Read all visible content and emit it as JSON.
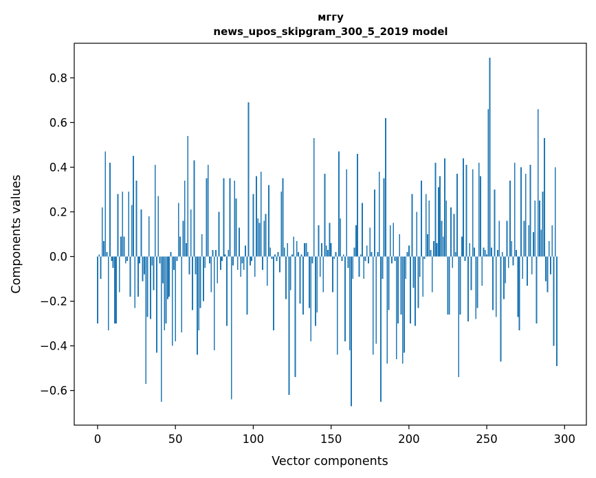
{
  "chart_data": {
    "type": "bar",
    "title_line1": "мггу",
    "title_line2": "news_upos_skipgram_300_5_2019 model",
    "xlabel": "Vector components",
    "ylabel": "Components values",
    "xlim": [
      -15,
      314
    ],
    "ylim": [
      -0.755,
      0.955
    ],
    "xticks": [
      0,
      50,
      100,
      150,
      200,
      250,
      300
    ],
    "xtick_labels": [
      "0",
      "50",
      "100",
      "150",
      "200",
      "250",
      "300"
    ],
    "yticks": [
      -0.6,
      -0.4,
      -0.2,
      0.0,
      0.2,
      0.4,
      0.6,
      0.8
    ],
    "ytick_labels": [
      "−0.6",
      "−0.4",
      "−0.2",
      "0.0",
      "0.2",
      "0.4",
      "0.6",
      "0.8"
    ],
    "bar_color": "#1f77b4",
    "values": [
      -0.3,
      0.01,
      -0.1,
      0.22,
      0.07,
      0.47,
      0.02,
      -0.33,
      0.42,
      -0.02,
      -0.05,
      -0.3,
      -0.3,
      0.28,
      -0.16,
      0.09,
      0.29,
      0.09,
      -0.03,
      -0.02,
      0.29,
      -0.18,
      0.23,
      0.45,
      -0.23,
      0.34,
      -0.18,
      -0.03,
      0.21,
      -0.11,
      -0.08,
      -0.57,
      -0.27,
      0.18,
      -0.28,
      -0.04,
      -0.15,
      0.41,
      -0.43,
      0.27,
      -0.03,
      -0.65,
      -0.12,
      -0.33,
      -0.3,
      -0.19,
      -0.18,
      0.02,
      -0.4,
      -0.06,
      -0.38,
      -0.02,
      0.24,
      0.09,
      -0.34,
      0.16,
      0.34,
      0.06,
      0.54,
      -0.08,
      0.21,
      -0.24,
      0.43,
      -0.08,
      -0.44,
      -0.33,
      -0.23,
      0.1,
      -0.2,
      -0.05,
      0.35,
      0.41,
      -0.03,
      -0.16,
      0.03,
      -0.42,
      0.03,
      -0.12,
      0.2,
      -0.06,
      -0.02,
      0.35,
      0.01,
      -0.31,
      0.03,
      0.35,
      -0.64,
      -0.04,
      0.34,
      0.26,
      -0.06,
      0.13,
      -0.09,
      -0.03,
      -0.06,
      0.05,
      -0.26,
      0.69,
      -0.04,
      -0.02,
      0.28,
      -0.09,
      0.36,
      0.17,
      0.15,
      0.38,
      -0.06,
      0.16,
      0.19,
      -0.13,
      0.32,
      0.04,
      -0.01,
      -0.33,
      0.01,
      -0.02,
      0.02,
      -0.07,
      0.29,
      0.35,
      0.04,
      -0.19,
      0.06,
      -0.62,
      -0.15,
      0.01,
      0.09,
      -0.54,
      0.07,
      0.02,
      -0.21,
      0.01,
      -0.26,
      0.06,
      0.06,
      0.02,
      -0.23,
      -0.38,
      -0.03,
      0.53,
      -0.31,
      -0.25,
      0.14,
      -0.09,
      0.06,
      -0.16,
      0.37,
      0.05,
      0.03,
      0.15,
      0.06,
      -0.16,
      -0.01,
      0.02,
      -0.44,
      0.47,
      0.17,
      -0.02,
      0.01,
      -0.38,
      0.39,
      -0.05,
      -0.42,
      -0.67,
      -0.1,
      0.04,
      0.14,
      0.46,
      -0.09,
      0.01,
      0.24,
      -0.1,
      -0.02,
      0.05,
      -0.03,
      0.13,
      0.02,
      -0.44,
      0.3,
      -0.39,
      0.02,
      0.38,
      -0.65,
      -0.1,
      0.35,
      0.62,
      -0.48,
      -0.24,
      0.14,
      -0.03,
      0.15,
      -0.02,
      -0.46,
      -0.3,
      0.1,
      -0.26,
      -0.48,
      -0.43,
      -0.1,
      0.02,
      0.05,
      -0.3,
      0.28,
      -0.14,
      -0.31,
      0.2,
      -0.23,
      -0.09,
      0.34,
      -0.18,
      -0.01,
      0.28,
      0.1,
      0.25,
      0.03,
      -0.16,
      0.07,
      0.42,
      0.06,
      0.31,
      0.36,
      0.16,
      0.09,
      0.44,
      0.25,
      -0.26,
      -0.26,
      0.22,
      -0.05,
      0.19,
      0.02,
      0.37,
      -0.54,
      -0.26,
      0.09,
      0.44,
      -0.02,
      0.41,
      -0.29,
      0.06,
      -0.15,
      0.39,
      0.04,
      -0.28,
      -0.23,
      0.42,
      0.36,
      -0.13,
      0.04,
      0.03,
      0.01,
      0.66,
      0.89,
      0.04,
      -0.24,
      0.3,
      -0.27,
      0.03,
      0.16,
      -0.47,
      0.02,
      -0.19,
      -0.12,
      0.16,
      -0.05,
      0.34,
      0.07,
      -0.04,
      0.42,
      0.03,
      -0.27,
      -0.33,
      0.4,
      -0.1,
      0.16,
      0.37,
      -0.13,
      0.14,
      0.41,
      -0.08,
      0.11,
      0.25,
      -0.3,
      0.66,
      0.25,
      0.12,
      0.29,
      0.53,
      -0.11,
      -0.16,
      0.07,
      -0.08,
      0.14,
      -0.4,
      0.4,
      -0.49
    ]
  }
}
